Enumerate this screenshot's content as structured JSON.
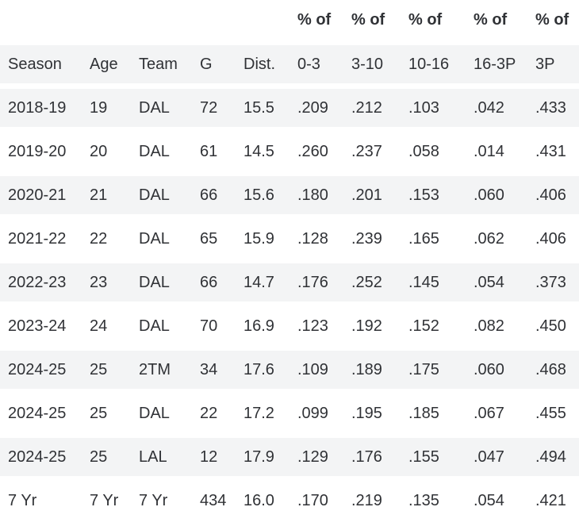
{
  "colors": {
    "background": "#ffffff",
    "row_stripe": "#f3f4f5",
    "text": "#303236"
  },
  "chart_data": {
    "type": "table",
    "title": "",
    "column_group_labels": [
      "",
      "",
      "",
      "",
      "",
      "% of",
      "% of",
      "% of",
      "% of",
      "% of"
    ],
    "columns": [
      "Season",
      "Age",
      "Team",
      "G",
      "Dist.",
      "0-3",
      "3-10",
      "10-16",
      "16-3P",
      "3P"
    ],
    "rows": [
      [
        "2018-19",
        "19",
        "DAL",
        "72",
        "15.5",
        ".209",
        ".212",
        ".103",
        ".042",
        ".433"
      ],
      [
        "2019-20",
        "20",
        "DAL",
        "61",
        "14.5",
        ".260",
        ".237",
        ".058",
        ".014",
        ".431"
      ],
      [
        "2020-21",
        "21",
        "DAL",
        "66",
        "15.6",
        ".180",
        ".201",
        ".153",
        ".060",
        ".406"
      ],
      [
        "2021-22",
        "22",
        "DAL",
        "65",
        "15.9",
        ".128",
        ".239",
        ".165",
        ".062",
        ".406"
      ],
      [
        "2022-23",
        "23",
        "DAL",
        "66",
        "14.7",
        ".176",
        ".252",
        ".145",
        ".054",
        ".373"
      ],
      [
        "2023-24",
        "24",
        "DAL",
        "70",
        "16.9",
        ".123",
        ".192",
        ".152",
        ".082",
        ".450"
      ],
      [
        "2024-25",
        "25",
        "2TM",
        "34",
        "17.6",
        ".109",
        ".189",
        ".175",
        ".060",
        ".468"
      ],
      [
        "2024-25",
        "25",
        "DAL",
        "22",
        "17.2",
        ".099",
        ".195",
        ".185",
        ".067",
        ".455"
      ],
      [
        "2024-25",
        "25",
        "LAL",
        "12",
        "17.9",
        ".129",
        ".176",
        ".155",
        ".047",
        ".494"
      ],
      [
        "7 Yr",
        "7 Yr",
        "7 Yr",
        "434",
        "16.0",
        ".170",
        ".219",
        ".135",
        ".054",
        ".421"
      ]
    ]
  }
}
